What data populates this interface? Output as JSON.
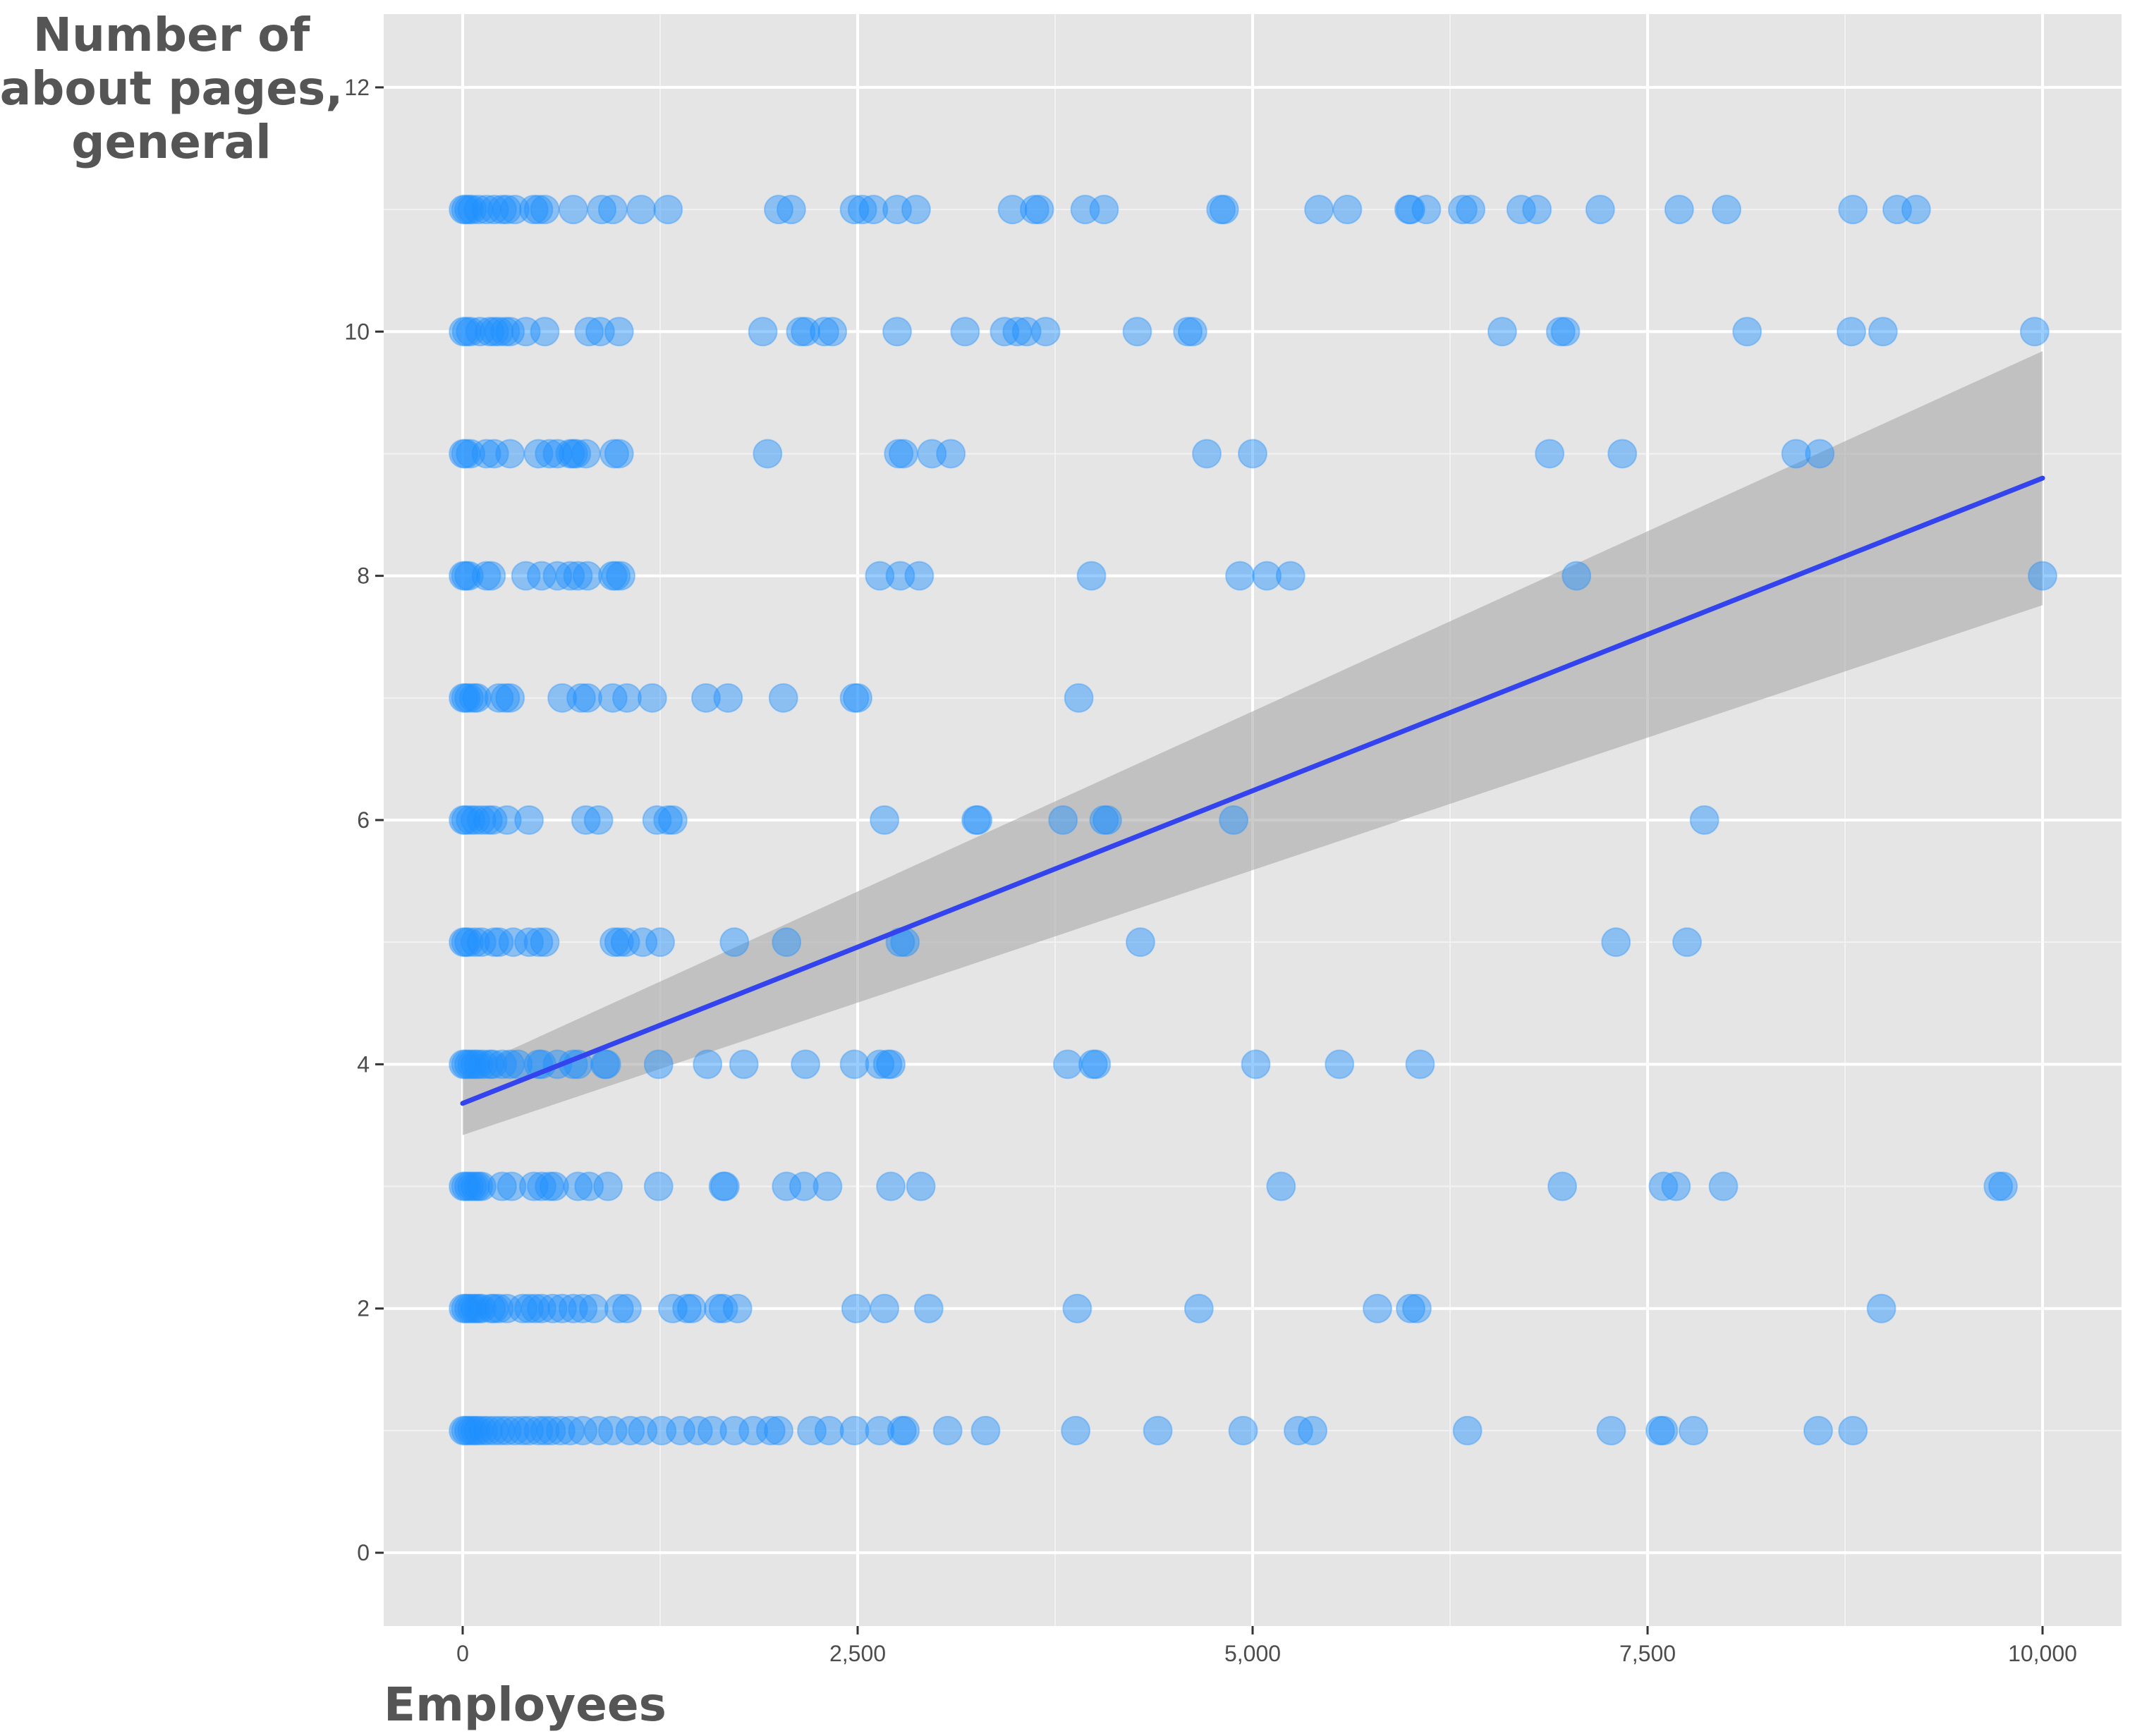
{
  "chart_data": {
    "type": "scatter",
    "xlabel": "Employees",
    "ylabel_lines": [
      "Number of",
      "about pages,",
      "general"
    ],
    "xlim": [
      -500,
      10500
    ],
    "ylim": [
      -0.6,
      12.6
    ],
    "x_ticks": [
      0,
      2500,
      5000,
      7500,
      10000
    ],
    "x_tick_labels": [
      "0",
      "2,500",
      "5,000",
      "7,500",
      "10,000"
    ],
    "y_ticks": [
      0,
      2,
      4,
      6,
      8,
      10,
      12
    ],
    "y_tick_labels": [
      "0",
      "2",
      "4",
      "6",
      "8",
      "10",
      "12"
    ],
    "grid": true,
    "point_color": "#1e90ff",
    "point_opacity": 0.45,
    "panel_color": "#e5e5e5",
    "grid_major_color": "#ffffff",
    "fit_line_color": "#3344ee",
    "ribbon_color": "#a9a9a9",
    "fit": {
      "type": "linear",
      "x_range": [
        0,
        10000
      ],
      "y_start": 3.68,
      "y_end": 8.8,
      "ci_lower_start": 3.42,
      "ci_upper_start": 3.94,
      "ci_lower_end": 7.76,
      "ci_upper_end": 9.84
    },
    "points": [
      [
        5,
        11
      ],
      [
        20,
        11
      ],
      [
        40,
        11
      ],
      [
        60,
        11
      ],
      [
        100,
        11
      ],
      [
        150,
        11
      ],
      [
        200,
        11
      ],
      [
        250,
        11
      ],
      [
        280,
        11
      ],
      [
        330,
        11
      ],
      [
        450,
        11
      ],
      [
        480,
        11
      ],
      [
        520,
        11
      ],
      [
        700,
        11
      ],
      [
        880,
        11
      ],
      [
        950,
        11
      ],
      [
        1130,
        11
      ],
      [
        1300,
        11
      ],
      [
        2000,
        11
      ],
      [
        2080,
        11
      ],
      [
        2480,
        11
      ],
      [
        2530,
        11
      ],
      [
        2600,
        11
      ],
      [
        2750,
        11
      ],
      [
        2870,
        11
      ],
      [
        3480,
        11
      ],
      [
        3620,
        11
      ],
      [
        3650,
        11
      ],
      [
        3940,
        11
      ],
      [
        4060,
        11
      ],
      [
        4800,
        11
      ],
      [
        4820,
        11
      ],
      [
        5420,
        11
      ],
      [
        5600,
        11
      ],
      [
        5990,
        11
      ],
      [
        6000,
        11
      ],
      [
        6100,
        11
      ],
      [
        6330,
        11
      ],
      [
        6380,
        11
      ],
      [
        6700,
        11
      ],
      [
        6800,
        11
      ],
      [
        7200,
        11
      ],
      [
        7700,
        11
      ],
      [
        8000,
        11
      ],
      [
        8800,
        11
      ],
      [
        9080,
        11
      ],
      [
        9200,
        11
      ],
      [
        5,
        10
      ],
      [
        25,
        10
      ],
      [
        50,
        10
      ],
      [
        110,
        10
      ],
      [
        170,
        10
      ],
      [
        200,
        10
      ],
      [
        230,
        10
      ],
      [
        270,
        10
      ],
      [
        300,
        10
      ],
      [
        400,
        10
      ],
      [
        520,
        10
      ],
      [
        800,
        10
      ],
      [
        870,
        10
      ],
      [
        990,
        10
      ],
      [
        1900,
        10
      ],
      [
        2140,
        10
      ],
      [
        2170,
        10
      ],
      [
        2290,
        10
      ],
      [
        2340,
        10
      ],
      [
        2750,
        10
      ],
      [
        3180,
        10
      ],
      [
        3430,
        10
      ],
      [
        3510,
        10
      ],
      [
        3570,
        10
      ],
      [
        3690,
        10
      ],
      [
        4270,
        10
      ],
      [
        4590,
        10
      ],
      [
        4620,
        10
      ],
      [
        6580,
        10
      ],
      [
        6950,
        10
      ],
      [
        6980,
        10
      ],
      [
        8130,
        10
      ],
      [
        8790,
        10
      ],
      [
        8990,
        10
      ],
      [
        9950,
        10
      ],
      [
        5,
        9
      ],
      [
        20,
        9
      ],
      [
        50,
        9
      ],
      [
        150,
        9
      ],
      [
        200,
        9
      ],
      [
        300,
        9
      ],
      [
        480,
        9
      ],
      [
        550,
        9
      ],
      [
        600,
        9
      ],
      [
        680,
        9
      ],
      [
        700,
        9
      ],
      [
        720,
        9
      ],
      [
        780,
        9
      ],
      [
        960,
        9
      ],
      [
        990,
        9
      ],
      [
        1930,
        9
      ],
      [
        2760,
        9
      ],
      [
        2790,
        9
      ],
      [
        2970,
        9
      ],
      [
        3090,
        9
      ],
      [
        4710,
        9
      ],
      [
        5000,
        9
      ],
      [
        6880,
        9
      ],
      [
        7340,
        9
      ],
      [
        8440,
        9
      ],
      [
        8590,
        9
      ],
      [
        5,
        8
      ],
      [
        20,
        8
      ],
      [
        40,
        8
      ],
      [
        150,
        8
      ],
      [
        180,
        8
      ],
      [
        500,
        8
      ],
      [
        400,
        8
      ],
      [
        600,
        8
      ],
      [
        680,
        8
      ],
      [
        730,
        8
      ],
      [
        790,
        8
      ],
      [
        950,
        8
      ],
      [
        970,
        8
      ],
      [
        1000,
        8
      ],
      [
        2640,
        8
      ],
      [
        2770,
        8
      ],
      [
        2890,
        8
      ],
      [
        3980,
        8
      ],
      [
        4920,
        8
      ],
      [
        5090,
        8
      ],
      [
        5240,
        8
      ],
      [
        7050,
        8
      ],
      [
        10000,
        8
      ],
      [
        5,
        7
      ],
      [
        20,
        7
      ],
      [
        40,
        7
      ],
      [
        70,
        7
      ],
      [
        90,
        7
      ],
      [
        230,
        7
      ],
      [
        270,
        7
      ],
      [
        300,
        7
      ],
      [
        630,
        7
      ],
      [
        750,
        7
      ],
      [
        790,
        7
      ],
      [
        950,
        7
      ],
      [
        1040,
        7
      ],
      [
        1200,
        7
      ],
      [
        1540,
        7
      ],
      [
        1680,
        7
      ],
      [
        2030,
        7
      ],
      [
        2480,
        7
      ],
      [
        2500,
        7
      ],
      [
        3900,
        7
      ],
      [
        5,
        6
      ],
      [
        20,
        6
      ],
      [
        50,
        6
      ],
      [
        80,
        6
      ],
      [
        120,
        6
      ],
      [
        160,
        6
      ],
      [
        190,
        6
      ],
      [
        280,
        6
      ],
      [
        420,
        6
      ],
      [
        780,
        6
      ],
      [
        860,
        6
      ],
      [
        1230,
        6
      ],
      [
        1300,
        6
      ],
      [
        1330,
        6
      ],
      [
        2670,
        6
      ],
      [
        3250,
        6
      ],
      [
        3260,
        6
      ],
      [
        3800,
        6
      ],
      [
        4060,
        6
      ],
      [
        4080,
        6
      ],
      [
        4880,
        6
      ],
      [
        7860,
        6
      ],
      [
        5,
        5
      ],
      [
        20,
        5
      ],
      [
        40,
        5
      ],
      [
        80,
        5
      ],
      [
        120,
        5
      ],
      [
        200,
        5
      ],
      [
        230,
        5
      ],
      [
        320,
        5
      ],
      [
        420,
        5
      ],
      [
        480,
        5
      ],
      [
        520,
        5
      ],
      [
        960,
        5
      ],
      [
        990,
        5
      ],
      [
        1030,
        5
      ],
      [
        1140,
        5
      ],
      [
        1250,
        5
      ],
      [
        1720,
        5
      ],
      [
        2050,
        5
      ],
      [
        2770,
        5
      ],
      [
        2800,
        5
      ],
      [
        4290,
        5
      ],
      [
        7300,
        5
      ],
      [
        7750,
        5
      ],
      [
        5,
        4
      ],
      [
        20,
        4
      ],
      [
        40,
        4
      ],
      [
        60,
        4
      ],
      [
        80,
        4
      ],
      [
        100,
        4
      ],
      [
        130,
        4
      ],
      [
        170,
        4
      ],
      [
        190,
        4
      ],
      [
        250,
        4
      ],
      [
        300,
        4
      ],
      [
        350,
        4
      ],
      [
        480,
        4
      ],
      [
        500,
        4
      ],
      [
        600,
        4
      ],
      [
        700,
        4
      ],
      [
        730,
        4
      ],
      [
        900,
        4
      ],
      [
        910,
        4
      ],
      [
        1240,
        4
      ],
      [
        1550,
        4
      ],
      [
        1780,
        4
      ],
      [
        2170,
        4
      ],
      [
        2480,
        4
      ],
      [
        2640,
        4
      ],
      [
        2690,
        4
      ],
      [
        2710,
        4
      ],
      [
        3830,
        4
      ],
      [
        3990,
        4
      ],
      [
        4010,
        4
      ],
      [
        5020,
        4
      ],
      [
        5550,
        4
      ],
      [
        6060,
        4
      ],
      [
        5,
        3
      ],
      [
        20,
        3
      ],
      [
        40,
        3
      ],
      [
        60,
        3
      ],
      [
        80,
        3
      ],
      [
        100,
        3
      ],
      [
        120,
        3
      ],
      [
        250,
        3
      ],
      [
        310,
        3
      ],
      [
        450,
        3
      ],
      [
        500,
        3
      ],
      [
        550,
        3
      ],
      [
        580,
        3
      ],
      [
        730,
        3
      ],
      [
        800,
        3
      ],
      [
        920,
        3
      ],
      [
        1240,
        3
      ],
      [
        1650,
        3
      ],
      [
        1660,
        3
      ],
      [
        2050,
        3
      ],
      [
        2160,
        3
      ],
      [
        2310,
        3
      ],
      [
        2710,
        3
      ],
      [
        2900,
        3
      ],
      [
        5180,
        3
      ],
      [
        6960,
        3
      ],
      [
        7600,
        3
      ],
      [
        7680,
        3
      ],
      [
        7980,
        3
      ],
      [
        9720,
        3
      ],
      [
        9750,
        3
      ],
      [
        5,
        2
      ],
      [
        20,
        2
      ],
      [
        40,
        2
      ],
      [
        60,
        2
      ],
      [
        80,
        2
      ],
      [
        100,
        2
      ],
      [
        120,
        2
      ],
      [
        180,
        2
      ],
      [
        200,
        2
      ],
      [
        230,
        2
      ],
      [
        280,
        2
      ],
      [
        380,
        2
      ],
      [
        420,
        2
      ],
      [
        460,
        2
      ],
      [
        500,
        2
      ],
      [
        570,
        2
      ],
      [
        630,
        2
      ],
      [
        700,
        2
      ],
      [
        760,
        2
      ],
      [
        830,
        2
      ],
      [
        990,
        2
      ],
      [
        1040,
        2
      ],
      [
        1330,
        2
      ],
      [
        1420,
        2
      ],
      [
        1450,
        2
      ],
      [
        1620,
        2
      ],
      [
        1650,
        2
      ],
      [
        1740,
        2
      ],
      [
        2490,
        2
      ],
      [
        2670,
        2
      ],
      [
        2950,
        2
      ],
      [
        3890,
        2
      ],
      [
        4660,
        2
      ],
      [
        5790,
        2
      ],
      [
        6000,
        2
      ],
      [
        6040,
        2
      ],
      [
        8980,
        2
      ],
      [
        5,
        1
      ],
      [
        20,
        1
      ],
      [
        40,
        1
      ],
      [
        60,
        1
      ],
      [
        80,
        1
      ],
      [
        100,
        1
      ],
      [
        130,
        1
      ],
      [
        160,
        1
      ],
      [
        200,
        1
      ],
      [
        240,
        1
      ],
      [
        280,
        1
      ],
      [
        330,
        1
      ],
      [
        380,
        1
      ],
      [
        420,
        1
      ],
      [
        480,
        1
      ],
      [
        520,
        1
      ],
      [
        560,
        1
      ],
      [
        620,
        1
      ],
      [
        680,
        1
      ],
      [
        760,
        1
      ],
      [
        860,
        1
      ],
      [
        950,
        1
      ],
      [
        1060,
        1
      ],
      [
        1140,
        1
      ],
      [
        1260,
        1
      ],
      [
        1380,
        1
      ],
      [
        1490,
        1
      ],
      [
        1580,
        1
      ],
      [
        1720,
        1
      ],
      [
        1840,
        1
      ],
      [
        1950,
        1
      ],
      [
        2000,
        1
      ],
      [
        2210,
        1
      ],
      [
        2320,
        1
      ],
      [
        2480,
        1
      ],
      [
        2640,
        1
      ],
      [
        2780,
        1
      ],
      [
        2800,
        1
      ],
      [
        3070,
        1
      ],
      [
        3310,
        1
      ],
      [
        3880,
        1
      ],
      [
        4400,
        1
      ],
      [
        4940,
        1
      ],
      [
        5290,
        1
      ],
      [
        5380,
        1
      ],
      [
        6360,
        1
      ],
      [
        7270,
        1
      ],
      [
        7580,
        1
      ],
      [
        7600,
        1
      ],
      [
        7790,
        1
      ],
      [
        8580,
        1
      ],
      [
        8800,
        1
      ]
    ]
  }
}
